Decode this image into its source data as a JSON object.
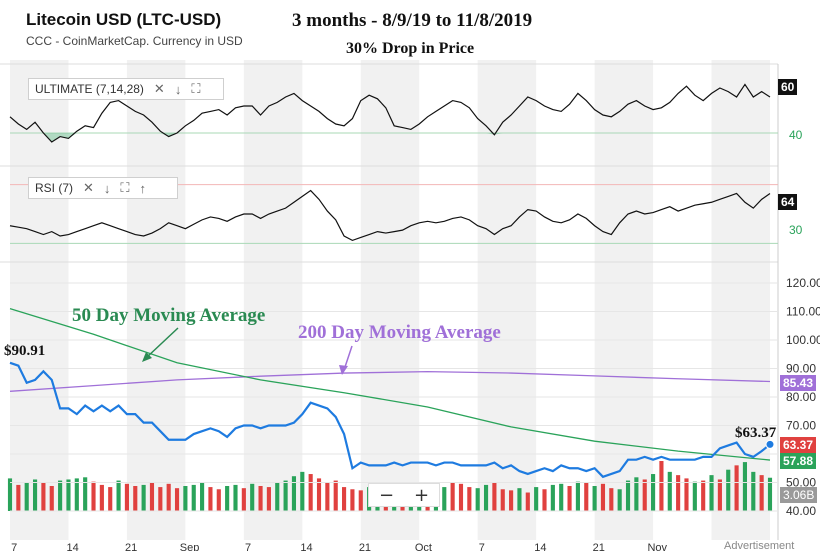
{
  "header": {
    "title": "Litecoin USD (LTC-USD)",
    "subtitle": "CCC - CoinMarketCap. Currency in USD"
  },
  "annotations": {
    "period": "3 months - 8/9/19 to 11/8/2019",
    "drop": "30% Drop in Price",
    "ma50": "50 Day Moving Average",
    "ma200": "200 Day Moving Average",
    "start_price": "$90.91",
    "end_price": "$63.37"
  },
  "indicators": {
    "ultimate": {
      "label": "ULTIMATE (7,14,28)",
      "last": "60",
      "level_low": "40"
    },
    "rsi": {
      "label": "RSI (7)",
      "last": "64",
      "level_low": "30"
    }
  },
  "price_labels": {
    "ma200": "85.43",
    "price": "63.37",
    "ma50": "57.88",
    "volume": "3.06B"
  },
  "x_labels": [
    "7",
    "14",
    "21",
    "Sep",
    "7",
    "14",
    "21",
    "Oct",
    "7",
    "14",
    "21",
    "Nov"
  ],
  "watermark": "Advertisement",
  "colors": {
    "price": "#1e7be0",
    "ma50": "#2aa35a",
    "ma200": "#a070d8",
    "vol_up": "#2aa35a",
    "vol_down": "#e0413f",
    "label_red": "#e0413f",
    "label_green": "#2aa35a",
    "label_purple": "#a070d8",
    "label_gray": "#9a9a9a"
  },
  "chart_data": {
    "type": "line",
    "ylim": [
      40,
      120
    ],
    "y_ticks": [
      "120.00",
      "110.00",
      "100.00",
      "90.00",
      "80.00",
      "70.00",
      "60.00",
      "50.00",
      "40.00"
    ],
    "x_day_range": [
      0,
      91
    ],
    "series": [
      {
        "name": "Price",
        "x": [
          0,
          1,
          2,
          3,
          4,
          5,
          6,
          7,
          8,
          9,
          10,
          11,
          12,
          13,
          14,
          15,
          16,
          17,
          18,
          19,
          20,
          21,
          22,
          23,
          24,
          25,
          26,
          27,
          28,
          29,
          30,
          31,
          32,
          33,
          34,
          35,
          36,
          37,
          38,
          39,
          40,
          41,
          42,
          43,
          44,
          45,
          46,
          47,
          48,
          49,
          50,
          51,
          52,
          53,
          54,
          55,
          56,
          57,
          58,
          59,
          60,
          61,
          62,
          63,
          64,
          65,
          66,
          67,
          68,
          69,
          70,
          71,
          72,
          73,
          74,
          75,
          76,
          77,
          78,
          79,
          80,
          81,
          82,
          83,
          84,
          85,
          86,
          87,
          88,
          89,
          90,
          91
        ],
        "values": [
          92,
          91,
          85,
          86,
          89,
          86,
          76,
          76,
          74,
          77,
          75,
          77,
          75,
          77,
          74,
          74,
          71,
          71,
          68,
          65,
          65,
          65,
          67,
          68,
          69,
          68,
          66,
          69,
          70,
          70,
          69,
          70,
          70,
          70,
          71,
          74,
          78,
          77,
          76,
          73,
          67,
          55,
          57,
          56,
          56,
          56,
          57,
          56,
          57,
          57,
          57,
          56,
          57,
          57,
          56,
          56,
          56,
          56,
          57,
          55,
          56,
          54,
          53,
          54,
          55,
          54,
          56,
          55,
          55,
          54,
          55,
          52,
          53,
          54,
          58,
          58,
          59,
          58,
          59,
          58,
          58,
          58,
          58,
          59,
          59,
          62,
          63,
          64,
          60,
          59,
          61,
          63.37
        ]
      },
      {
        "name": "50 Day Moving Average",
        "x": [
          0,
          10,
          20,
          30,
          40,
          50,
          60,
          70,
          80,
          91
        ],
        "values": [
          111,
          102,
          92,
          86,
          81.5,
          76.5,
          69.5,
          64.5,
          61,
          57.88
        ]
      },
      {
        "name": "200 Day Moving Average",
        "x": [
          0,
          10,
          20,
          30,
          40,
          50,
          60,
          70,
          80,
          91
        ],
        "values": [
          82,
          84,
          86,
          87.3,
          88.4,
          88.9,
          88.4,
          87.4,
          86.4,
          85.43
        ]
      }
    ],
    "volume_billions": [
      3.0,
      2.4,
      2.6,
      2.9,
      2.6,
      2.3,
      2.8,
      2.9,
      3.0,
      3.1,
      2.7,
      2.4,
      2.2,
      2.8,
      2.5,
      2.3,
      2.4,
      2.6,
      2.2,
      2.5,
      2.1,
      2.3,
      2.4,
      2.6,
      2.2,
      2.0,
      2.3,
      2.4,
      2.1,
      2.5,
      2.3,
      2.2,
      2.6,
      2.8,
      3.2,
      3.6,
      3.4,
      3.0,
      2.6,
      2.8,
      2.2,
      2.0,
      1.9,
      2.2,
      1.8,
      1.6,
      2.0,
      2.4,
      2.1,
      1.9,
      2.3,
      2.0,
      2.2,
      2.6,
      2.5,
      2.2,
      2.1,
      2.4,
      2.6,
      2.0,
      1.9,
      2.1,
      1.7,
      2.2,
      2.0,
      2.4,
      2.5,
      2.3,
      2.7,
      2.6,
      2.3,
      2.5,
      2.1,
      2.0,
      2.8,
      3.1,
      2.9,
      3.4,
      4.6,
      3.6,
      3.3,
      3.0,
      2.7,
      2.8,
      3.3,
      2.9,
      3.8,
      4.2,
      4.5,
      3.6,
      3.3,
      3.06
    ],
    "volume_up": [
      true,
      false,
      true,
      true,
      false,
      false,
      true,
      true,
      true,
      true,
      false,
      false,
      false,
      true,
      false,
      false,
      true,
      false,
      false,
      false,
      false,
      true,
      true,
      true,
      false,
      false,
      true,
      true,
      false,
      true,
      false,
      false,
      true,
      true,
      true,
      true,
      false,
      false,
      false,
      false,
      false,
      false,
      false,
      true,
      true,
      false,
      true,
      false,
      true,
      true,
      false,
      true,
      true,
      false,
      false,
      false,
      true,
      true,
      false,
      false,
      false,
      true,
      false,
      true,
      false,
      true,
      true,
      false,
      true,
      false,
      true,
      false,
      false,
      true,
      true,
      true,
      false,
      true,
      false,
      true,
      false,
      false,
      true,
      false,
      true,
      false,
      true,
      false,
      true,
      true,
      false,
      true
    ],
    "ultimate_oscillator": [
      49,
      45,
      42,
      46,
      40,
      35,
      38,
      37,
      41,
      44,
      43,
      51,
      57,
      58,
      55,
      52,
      50,
      46,
      41,
      38,
      40,
      44,
      47,
      51,
      52,
      53,
      50,
      54,
      55,
      55,
      50,
      55,
      57,
      60,
      62,
      58,
      55,
      52,
      48,
      45,
      44,
      48,
      58,
      61,
      59,
      54,
      44,
      43,
      42,
      45,
      49,
      52,
      55,
      58,
      57,
      54,
      48,
      44,
      39,
      46,
      50,
      55,
      60,
      58,
      55,
      53,
      52,
      56,
      62,
      58,
      53,
      50,
      49,
      52,
      56,
      58,
      55,
      53,
      54,
      57,
      62,
      66,
      61,
      58,
      62,
      65,
      63,
      60,
      67,
      60,
      63,
      60
    ],
    "rsi": [
      42,
      41,
      40,
      38,
      36,
      38,
      35,
      36,
      38,
      40,
      42,
      44,
      42,
      40,
      38,
      36,
      35,
      37,
      40,
      44,
      42,
      40,
      43,
      46,
      48,
      47,
      45,
      48,
      50,
      50,
      47,
      50,
      52,
      54,
      58,
      62,
      66,
      60,
      52,
      46,
      35,
      32,
      34,
      36,
      38,
      37,
      38,
      39,
      42,
      44,
      45,
      44,
      45,
      47,
      48,
      46,
      42,
      40,
      36,
      40,
      42,
      48,
      53,
      52,
      48,
      45,
      44,
      46,
      50,
      47,
      42,
      38,
      36,
      44,
      50,
      52,
      50,
      51,
      53,
      55,
      52,
      54,
      56,
      57,
      58,
      60,
      62,
      64,
      58,
      54,
      60,
      64
    ]
  }
}
